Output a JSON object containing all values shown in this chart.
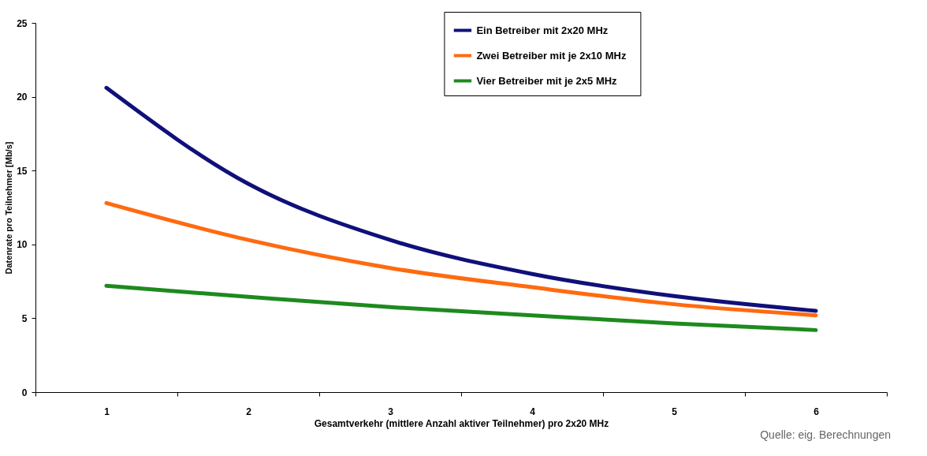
{
  "chart_data": {
    "type": "line",
    "xlabel": "Gesamtverkehr (mittlere Anzahl aktiver Teilnehmer) pro 2x20 MHz",
    "ylabel": "Datenrate pro Teilnehmer [Mb/s]",
    "categories": [
      "1",
      "2",
      "3",
      "4",
      "5",
      "6"
    ],
    "series": [
      {
        "name": "Ein Betreiber  mit 2x20  MHz",
        "color": "#10107a",
        "values": [
          20.6,
          14.1,
          10.3,
          8.0,
          6.5,
          5.5
        ]
      },
      {
        "name": "Zwei Betreiber  mit je 2x10  MHz",
        "color": "#ff6a10",
        "values": [
          12.8,
          10.3,
          8.4,
          7.1,
          5.95,
          5.2
        ]
      },
      {
        "name": "Vier Betreiber  mit je 2x5  MHz",
        "color": "#1e8a1e",
        "values": [
          7.2,
          6.45,
          5.75,
          5.2,
          4.65,
          4.2
        ]
      }
    ],
    "ylim": [
      0,
      25
    ],
    "yticks": [
      0,
      5,
      10,
      15,
      20,
      25
    ],
    "grid": false,
    "legend": "top right",
    "marker": "none",
    "line_style": "solid",
    "annotations": [
      "Quelle: eig. Berechnungen"
    ]
  }
}
